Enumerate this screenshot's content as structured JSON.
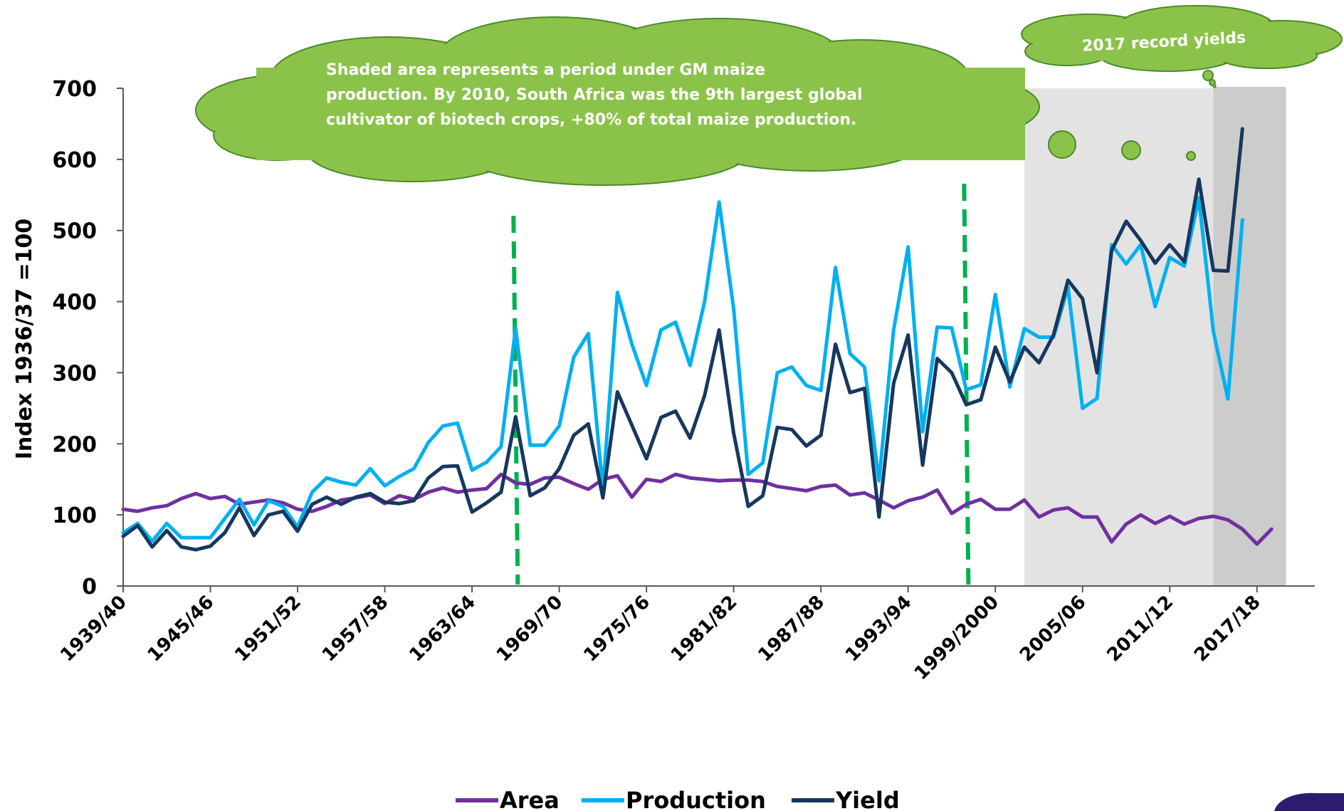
{
  "chart_data": {
    "type": "line",
    "ylabel": "Index 1936/37 =100",
    "ylim": [
      0,
      700
    ],
    "yticks": [
      0,
      100,
      200,
      300,
      400,
      500,
      600,
      700
    ],
    "xtick_labels": [
      "1939/40",
      "1945/46",
      "1951/52",
      "1957/58",
      "1963/64",
      "1969/70",
      "1975/76",
      "1981/82",
      "1987/88",
      "1993/94",
      "1999/2000",
      "2005/06",
      "2011/12",
      "2017/18"
    ],
    "x_start_year": 1939,
    "gm_start_year": 2001,
    "dark_start_year": 2014,
    "end_year": 2019,
    "markers_years": [
      1966,
      1997
    ],
    "legend_position": "bottom",
    "series": [
      {
        "name": "Area",
        "color": "#7030a0",
        "values": [
          108,
          105,
          110,
          113,
          123,
          130,
          123,
          126,
          115,
          118,
          121,
          117,
          108,
          105,
          112,
          121,
          124,
          128,
          116,
          127,
          122,
          132,
          138,
          132,
          135,
          137,
          157,
          145,
          143,
          152,
          153,
          144,
          136,
          150,
          155,
          125,
          150,
          147,
          157,
          152,
          150,
          148,
          149,
          149,
          147,
          140,
          137,
          134,
          140,
          142,
          128,
          131,
          121,
          110,
          120,
          125,
          135,
          102,
          115,
          122,
          108,
          108,
          121,
          97,
          107,
          110,
          97,
          97,
          62,
          87,
          100,
          88,
          98,
          87,
          95,
          98,
          93,
          80,
          59,
          80
        ]
      },
      {
        "name": "Production",
        "color": "#00b0f0",
        "values": [
          75,
          88,
          63,
          88,
          68,
          68,
          68,
          95,
          122,
          86,
          120,
          112,
          83,
          132,
          152,
          146,
          142,
          165,
          141,
          154,
          165,
          202,
          225,
          229,
          163,
          174,
          196,
          363,
          198,
          198,
          225,
          322,
          355,
          135,
          413,
          340,
          282,
          360,
          371,
          310,
          400,
          540,
          390,
          157,
          173,
          300,
          308,
          282,
          275,
          448,
          327,
          308,
          148,
          360,
          477,
          217,
          364,
          363,
          276,
          283,
          410,
          280,
          362,
          350,
          350,
          420,
          250,
          264,
          480,
          453,
          480,
          393,
          462,
          450,
          546,
          358,
          263,
          515
        ]
      },
      {
        "name": "Yield",
        "color": "#17375e",
        "values": [
          70,
          85,
          55,
          78,
          55,
          51,
          56,
          75,
          110,
          71,
          100,
          105,
          77,
          115,
          125,
          115,
          125,
          130,
          118,
          116,
          120,
          152,
          168,
          169,
          104,
          117,
          132,
          238,
          127,
          138,
          165,
          212,
          228,
          124,
          273,
          226,
          179,
          237,
          246,
          208,
          268,
          360,
          215,
          112,
          127,
          223,
          220,
          197,
          212,
          340,
          272,
          278,
          97,
          285,
          353,
          170,
          320,
          300,
          255,
          262,
          336,
          287,
          336,
          314,
          353,
          430,
          404,
          300,
          472,
          513,
          486,
          454,
          480,
          456,
          572,
          444,
          443,
          643
        ]
      }
    ]
  },
  "annotations": {
    "gm_cloud": {
      "line1": "Shaded area represents a period under GM maize",
      "line2": "production. By 2010, South Africa was the 9th largest global",
      "line3": "cultivator of biotech crops, +80% of total maize production."
    },
    "record_cloud": {
      "text": "2017 record yields"
    }
  },
  "colors": {
    "cloud_fill": "#8bc34a",
    "cloud_stroke": "#4a8a2a",
    "shade_light": "#e3e3e3",
    "shade_dark": "#cccccc",
    "marker_line": "#00b050",
    "axis": "#595959"
  }
}
